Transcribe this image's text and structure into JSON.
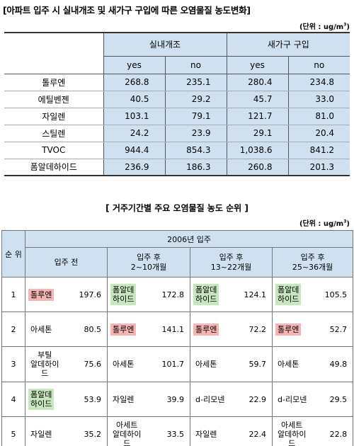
{
  "table1": {
    "title": "[아파트 입주 시 실내개조 및 새가구 구입에 따른 오염물질 농도변화]",
    "unit": "(단위 : ug/m",
    "unit_sup": "3",
    "unit_close": ")",
    "group_headers": [
      "실내개조",
      "새가구 구입"
    ],
    "sub_headers": [
      "yes",
      "no",
      "yes",
      "no"
    ],
    "rows": [
      {
        "label": "톨루엔",
        "values": [
          "268.8",
          "235.1",
          "280.4",
          "234.8"
        ]
      },
      {
        "label": "에틸벤젠",
        "values": [
          "40.5",
          "29.2",
          "45.7",
          "33.0"
        ]
      },
      {
        "label": "자일렌",
        "values": [
          "103.1",
          "79.1",
          "121.7",
          "81.0"
        ]
      },
      {
        "label": "스틸렌",
        "values": [
          "24.2",
          "23.9",
          "29.1",
          "20.4"
        ]
      },
      {
        "label": "TVOC",
        "values": [
          "944.4",
          "854.3",
          "1,038.6",
          "841.2"
        ]
      },
      {
        "label": "폼알데하이드",
        "values": [
          "236.9",
          "186.3",
          "260.8",
          "201.3"
        ]
      }
    ]
  },
  "table2": {
    "title": "[ 거주기간별 주요 오염물질 농도 순위 ]",
    "unit": "(단위 : ug/m",
    "unit_sup": "3",
    "unit_close": ")",
    "rank_header": "순 위",
    "year_header": "2006년 입주",
    "period_headers": [
      {
        "line1": "입주 전",
        "line2": ""
      },
      {
        "line1": "입주 후",
        "line2": "2~10개월"
      },
      {
        "line1": "입주 후",
        "line2": "13~22개월"
      },
      {
        "line1": "입주 후",
        "line2": "25~36개월"
      }
    ],
    "rows": [
      {
        "rank": "1",
        "cells": [
          {
            "name": "톨루엔",
            "value": "197.6",
            "color": "#f7b4b4"
          },
          {
            "name": "폼알데\n하이드",
            "value": "172.8",
            "color": "#c8e6c0"
          },
          {
            "name": "폼알데\n하이드",
            "value": "124.1",
            "color": "#c8e6c0"
          },
          {
            "name": "폼알데\n하이드",
            "value": "105.5",
            "color": "#c8e6c0"
          }
        ]
      },
      {
        "rank": "2",
        "cells": [
          {
            "name": "아세톤",
            "value": "80.5",
            "color": ""
          },
          {
            "name": "톨루엔",
            "value": "141.1",
            "color": "#f7b4b4"
          },
          {
            "name": "톨루엔",
            "value": "72.2",
            "color": "#f7b4b4"
          },
          {
            "name": "톨루엔",
            "value": "52.7",
            "color": "#f7b4b4"
          }
        ]
      },
      {
        "rank": "3",
        "cells": [
          {
            "name": "부틸\n알데하이\n드",
            "value": "75.6",
            "color": ""
          },
          {
            "name": "아세톤",
            "value": "101.7",
            "color": ""
          },
          {
            "name": "아세톤",
            "value": "59.7",
            "color": ""
          },
          {
            "name": "아세톤",
            "value": "49.8",
            "color": ""
          }
        ]
      },
      {
        "rank": "4",
        "cells": [
          {
            "name": "폼알데\n하이드",
            "value": "53.9",
            "color": "#c8e6c0"
          },
          {
            "name": "자일렌",
            "value": "39.9",
            "color": ""
          },
          {
            "name": "d-리모넨",
            "value": "22.9",
            "color": ""
          },
          {
            "name": "d-리모넨",
            "value": "29.5",
            "color": ""
          }
        ]
      },
      {
        "rank": "5",
        "cells": [
          {
            "name": "자일렌",
            "value": "35.2",
            "color": ""
          },
          {
            "name": "아세트\n알데하이\n드",
            "value": "33.5",
            "color": ""
          },
          {
            "name": "자일렌",
            "value": "22.4",
            "color": ""
          },
          {
            "name": "아세트\n알데하이\n드",
            "value": "22.8",
            "color": ""
          }
        ]
      }
    ]
  }
}
